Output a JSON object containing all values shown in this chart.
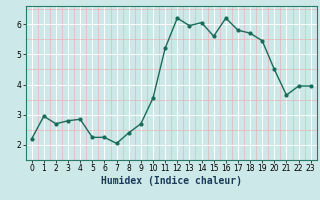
{
  "x": [
    0,
    1,
    2,
    3,
    4,
    5,
    6,
    7,
    8,
    9,
    10,
    11,
    12,
    13,
    14,
    15,
    16,
    17,
    18,
    19,
    20,
    21,
    22,
    23
  ],
  "y": [
    2.2,
    2.95,
    2.7,
    2.8,
    2.85,
    2.25,
    2.25,
    2.05,
    2.4,
    2.7,
    3.55,
    5.2,
    6.2,
    5.95,
    6.05,
    5.6,
    6.2,
    5.8,
    5.7,
    5.45,
    4.5,
    3.65,
    3.95,
    3.95
  ],
  "line_color": "#1a6b5a",
  "marker": "o",
  "marker_size": 2,
  "linewidth": 1.0,
  "xlabel": "Humidex (Indice chaleur)",
  "ylim": [
    1.5,
    6.6
  ],
  "xlim": [
    -0.5,
    23.5
  ],
  "yticks": [
    2,
    3,
    4,
    5,
    6
  ],
  "xticks": [
    0,
    1,
    2,
    3,
    4,
    5,
    6,
    7,
    8,
    9,
    10,
    11,
    12,
    13,
    14,
    15,
    16,
    17,
    18,
    19,
    20,
    21,
    22,
    23
  ],
  "bg_color": "#cce8e8",
  "grid_color_white": "#ffffff",
  "grid_color_pink": "#f0a8a8",
  "tick_fontsize": 5.5,
  "xlabel_fontsize": 7
}
